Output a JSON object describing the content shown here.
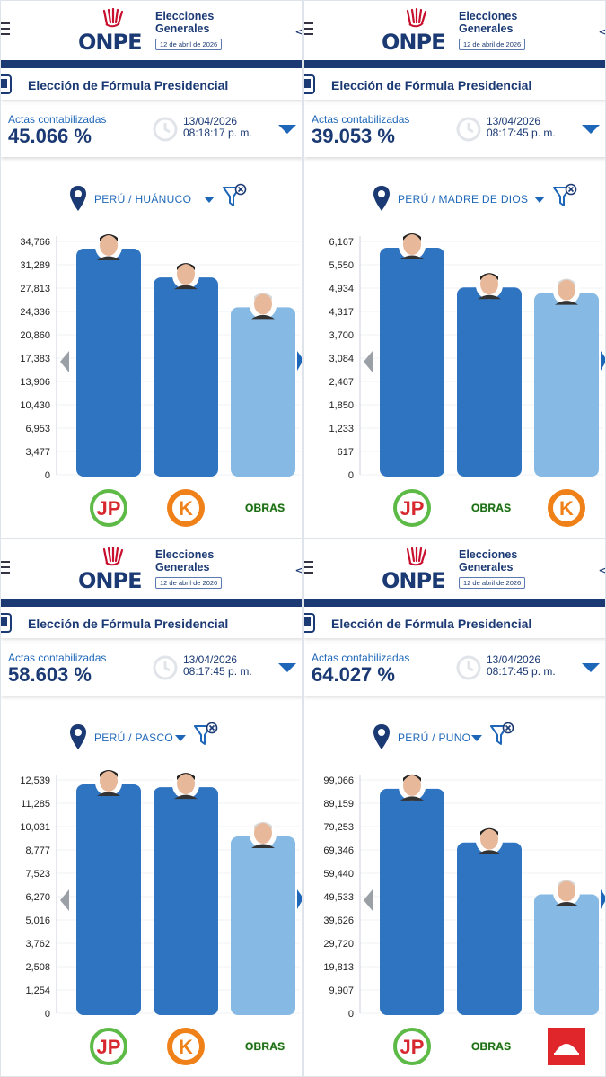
{
  "header": {
    "org": "ONPE",
    "line1": "Elecciones",
    "line2": "Generales",
    "date_pill": "12 de abril de 2026"
  },
  "section_title": "Elección de Fórmula Presidencial",
  "actas_label": "Actas contabilizadas",
  "colors": {
    "dark_blue": "#1b3a74",
    "bar_dark": "#2f74c1",
    "bar_light": "#86b9e3",
    "text_blue": "#1e67b8"
  },
  "icons": [
    "menu-icon",
    "share-icon",
    "crest-icon",
    "clock-icon",
    "location-pin-icon",
    "filter-clear-icon",
    "chevron-down-icon",
    "arrow-left-icon",
    "arrow-right-icon"
  ],
  "panels": [
    {
      "pct": "45.066 %",
      "date": "13/04/2026",
      "time": "08:18:17 p. m.",
      "location": "PERÚ / HUÁNUCO",
      "chart_data": {
        "type": "bar",
        "ylim": [
          0,
          34766
        ],
        "ticks": [
          "34,766",
          "31,289",
          "27,813",
          "24,336",
          "20,860",
          "17,383",
          "13,906",
          "10,430",
          "6,953",
          "3,477",
          "0"
        ],
        "categories": [
          "JP",
          "K",
          "OBRAS"
        ],
        "values": [
          33700,
          29400,
          24950
        ],
        "bar_colors": [
          "#2f74c1",
          "#2f74c1",
          "#86b9e3"
        ]
      },
      "parties": [
        "JP",
        "K",
        "OBRAS"
      ]
    },
    {
      "pct": "39.053 %",
      "date": "13/04/2026",
      "time": "08:17:45 p. m.",
      "location": "PERÚ / MADRE DE DIOS",
      "chart_data": {
        "type": "bar",
        "ylim": [
          0,
          6167
        ],
        "ticks": [
          "6,167",
          "5,550",
          "4,934",
          "4,317",
          "3,700",
          "3,084",
          "2,467",
          "1,850",
          "1,233",
          "617",
          "0"
        ],
        "categories": [
          "JP",
          "OBRAS",
          "K"
        ],
        "values": [
          6000,
          4950,
          4800
        ],
        "bar_colors": [
          "#2f74c1",
          "#2f74c1",
          "#86b9e3"
        ]
      },
      "parties": [
        "JP",
        "OBRAS",
        "K"
      ]
    },
    {
      "pct": "58.603 %",
      "date": "13/04/2026",
      "time": "08:17:45 p. m.",
      "location": "PERÚ / PASCO",
      "chart_data": {
        "type": "bar",
        "ylim": [
          0,
          12539
        ],
        "ticks": [
          "12,539",
          "11,285",
          "10,031",
          "8,777",
          "7,523",
          "6,270",
          "5,016",
          "3,762",
          "2,508",
          "1,254",
          "0"
        ],
        "categories": [
          "JP",
          "K",
          "OBRAS"
        ],
        "values": [
          12300,
          12150,
          9500
        ],
        "bar_colors": [
          "#2f74c1",
          "#2f74c1",
          "#86b9e3"
        ]
      },
      "parties": [
        "JP",
        "K",
        "OBRAS"
      ]
    },
    {
      "pct": "64.027 %",
      "date": "13/04/2026",
      "time": "08:17:45 p. m.",
      "location": "PERÚ / PUNO",
      "chart_data": {
        "type": "bar",
        "ylim": [
          0,
          99066
        ],
        "ticks": [
          "99,066",
          "89,159",
          "79,253",
          "69,346",
          "59,440",
          "49,533",
          "39,626",
          "29,720",
          "19,813",
          "9,907",
          "0"
        ],
        "categories": [
          "JP",
          "OBRAS",
          "RENOVACION"
        ],
        "values": [
          95300,
          72500,
          50500
        ],
        "bar_colors": [
          "#2f74c1",
          "#2f74c1",
          "#86b9e3"
        ]
      },
      "parties": [
        "JP",
        "OBRAS",
        "RENOVACION"
      ]
    }
  ]
}
